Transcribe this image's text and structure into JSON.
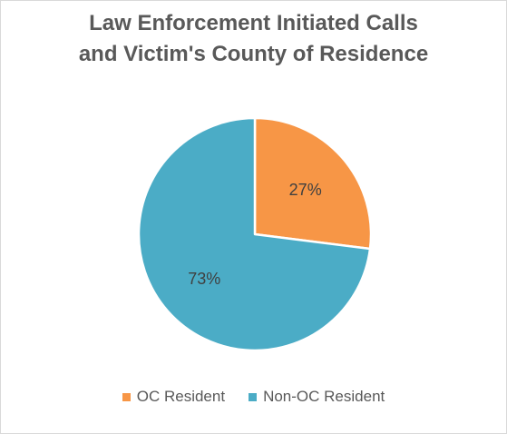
{
  "chart_data": {
    "type": "pie",
    "title_lines": [
      "Law Enforcement Initiated Calls",
      "and Victim's County of Residence"
    ],
    "categories": [
      "OC Resident",
      "Non-OC Resident"
    ],
    "values": [
      27,
      73
    ],
    "data_labels": [
      "27%",
      "73%"
    ],
    "colors": [
      "#f79646",
      "#4bacc6"
    ],
    "legend_position": "bottom",
    "start_angle_deg": 0,
    "direction": "clockwise"
  }
}
